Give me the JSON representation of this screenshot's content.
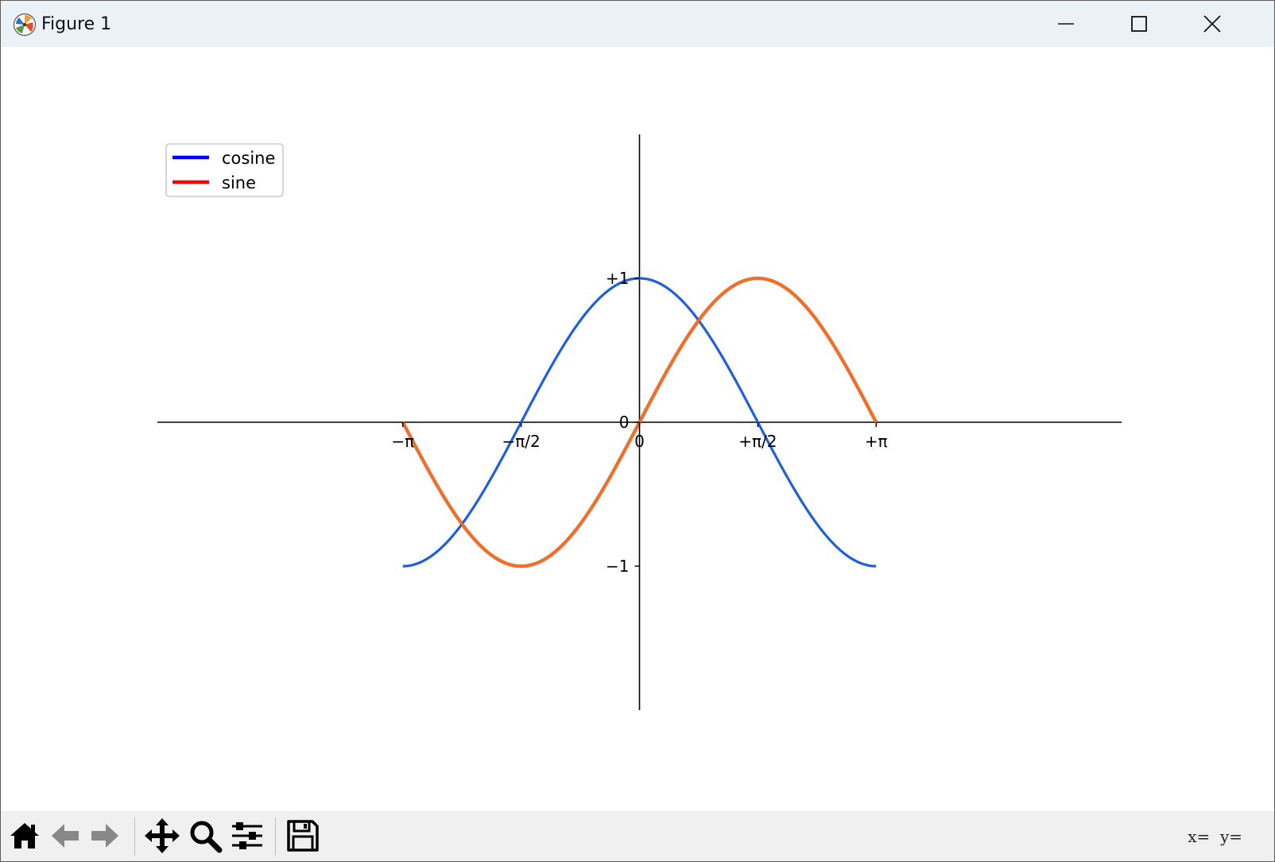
{
  "window": {
    "title": "Figure 1"
  },
  "chart_data": {
    "type": "line",
    "title": "",
    "xlabel": "",
    "ylabel": "",
    "xlim": [
      -6.4,
      6.4
    ],
    "ylim": [
      -2,
      2
    ],
    "x_ticks": [
      {
        "value": -3.14159,
        "label": "−π"
      },
      {
        "value": -1.5708,
        "label": "−π/2"
      },
      {
        "value": 0,
        "label": "0"
      },
      {
        "value": 1.5708,
        "label": "+π/2"
      },
      {
        "value": 3.14159,
        "label": "+π"
      }
    ],
    "y_ticks": [
      {
        "value": -1,
        "label": "−1"
      },
      {
        "value": 0,
        "label": "0"
      },
      {
        "value": 1,
        "label": "+1"
      }
    ],
    "x_range": [
      -3.14159,
      3.14159
    ],
    "series": [
      {
        "name": "cosine",
        "function": "cos",
        "line_color": "#1f5fdc",
        "legend_color": "#0000ff"
      },
      {
        "name": "sine",
        "function": "sin",
        "line_color": "#ff6a1a",
        "legend_color": "#ff0000"
      }
    ],
    "legend": {
      "placement": "upper-left",
      "entries": [
        "cosine",
        "sine"
      ]
    },
    "grid": false,
    "spines": "centered"
  },
  "toolbar": {
    "buttons": [
      {
        "name": "home-button",
        "icon": "home-icon"
      },
      {
        "name": "back-button",
        "icon": "arrow-left-icon"
      },
      {
        "name": "forward-button",
        "icon": "arrow-right-icon"
      },
      {
        "name": "pan-button",
        "icon": "move-icon"
      },
      {
        "name": "zoom-button",
        "icon": "magnifier-icon"
      },
      {
        "name": "configure-subplots-button",
        "icon": "sliders-icon"
      },
      {
        "name": "save-button",
        "icon": "floppy-icon"
      }
    ],
    "coords_text": "x=  y="
  }
}
